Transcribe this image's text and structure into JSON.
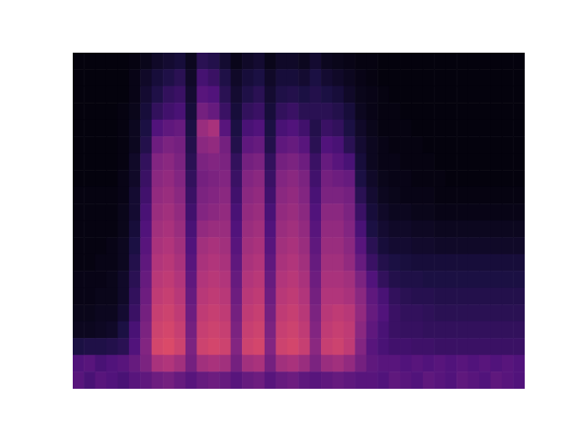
{
  "chart_data": {
    "type": "heatmap",
    "xlim": [
      0,
      40
    ],
    "ylim": [
      0,
      20
    ],
    "tick_labels": false,
    "clim": [
      0,
      110
    ],
    "cells": [
      [
        2,
        2,
        2,
        2,
        2,
        3,
        5,
        8,
        10,
        12,
        6,
        18,
        16,
        10,
        5,
        8,
        10,
        5,
        8,
        8,
        6,
        10,
        6,
        5,
        4,
        3,
        3,
        2,
        2,
        2,
        2,
        2,
        2,
        2,
        2,
        2,
        2,
        2,
        2,
        2
      ],
      [
        2,
        2,
        2,
        2,
        2,
        4,
        8,
        12,
        15,
        18,
        8,
        25,
        22,
        15,
        8,
        12,
        14,
        8,
        12,
        12,
        10,
        14,
        10,
        8,
        6,
        4,
        3,
        2,
        2,
        2,
        2,
        2,
        2,
        2,
        2,
        2,
        2,
        2,
        2,
        2
      ],
      [
        2,
        2,
        2,
        2,
        2,
        4,
        10,
        15,
        20,
        22,
        10,
        30,
        28,
        18,
        10,
        15,
        18,
        10,
        15,
        16,
        14,
        16,
        14,
        12,
        8,
        5,
        4,
        3,
        2,
        2,
        2,
        2,
        2,
        2,
        2,
        2,
        2,
        2,
        2,
        2
      ],
      [
        2,
        2,
        2,
        2,
        3,
        5,
        12,
        20,
        24,
        26,
        12,
        38,
        34,
        22,
        12,
        20,
        22,
        12,
        20,
        22,
        18,
        18,
        18,
        16,
        12,
        6,
        4,
        3,
        3,
        2,
        2,
        2,
        2,
        2,
        2,
        2,
        2,
        2,
        2,
        2
      ],
      [
        2,
        2,
        2,
        2,
        3,
        6,
        14,
        28,
        32,
        34,
        14,
        48,
        52,
        30,
        14,
        26,
        28,
        14,
        26,
        28,
        24,
        16,
        22,
        20,
        14,
        8,
        5,
        3,
        3,
        3,
        2,
        2,
        2,
        2,
        2,
        2,
        2,
        2,
        2,
        2
      ],
      [
        2,
        2,
        2,
        2,
        3,
        6,
        16,
        36,
        40,
        38,
        16,
        44,
        46,
        38,
        16,
        32,
        34,
        16,
        32,
        34,
        30,
        18,
        28,
        26,
        18,
        10,
        6,
        4,
        3,
        3,
        3,
        2,
        2,
        2,
        2,
        2,
        2,
        2,
        2,
        2
      ],
      [
        2,
        2,
        2,
        2,
        3,
        8,
        20,
        42,
        44,
        40,
        18,
        40,
        42,
        40,
        20,
        38,
        40,
        20,
        38,
        40,
        36,
        22,
        34,
        30,
        26,
        12,
        6,
        4,
        4,
        3,
        3,
        3,
        2,
        2,
        2,
        2,
        2,
        2,
        2,
        2
      ],
      [
        2,
        2,
        2,
        2,
        4,
        8,
        22,
        44,
        46,
        42,
        20,
        38,
        40,
        42,
        22,
        42,
        44,
        22,
        42,
        44,
        40,
        24,
        38,
        36,
        34,
        14,
        8,
        5,
        4,
        4,
        3,
        3,
        3,
        2,
        2,
        2,
        2,
        2,
        2,
        2
      ],
      [
        3,
        3,
        3,
        3,
        4,
        10,
        24,
        46,
        48,
        44,
        22,
        40,
        42,
        44,
        24,
        44,
        46,
        24,
        44,
        46,
        42,
        26,
        40,
        40,
        38,
        18,
        10,
        6,
        5,
        4,
        4,
        4,
        3,
        3,
        3,
        3,
        3,
        3,
        3,
        3
      ],
      [
        3,
        3,
        3,
        3,
        5,
        10,
        26,
        48,
        50,
        46,
        24,
        42,
        44,
        46,
        26,
        46,
        48,
        26,
        46,
        48,
        44,
        28,
        44,
        44,
        40,
        22,
        12,
        8,
        6,
        6,
        5,
        5,
        4,
        4,
        4,
        4,
        4,
        4,
        4,
        4
      ],
      [
        3,
        3,
        3,
        3,
        5,
        12,
        28,
        50,
        52,
        48,
        26,
        46,
        48,
        48,
        28,
        48,
        50,
        28,
        48,
        50,
        46,
        30,
        46,
        46,
        42,
        26,
        14,
        10,
        8,
        8,
        7,
        7,
        6,
        6,
        6,
        6,
        6,
        6,
        6,
        6
      ],
      [
        3,
        3,
        3,
        4,
        6,
        14,
        30,
        52,
        54,
        50,
        28,
        50,
        52,
        50,
        30,
        50,
        52,
        30,
        50,
        52,
        48,
        32,
        48,
        48,
        44,
        30,
        18,
        12,
        10,
        10,
        9,
        9,
        8,
        8,
        8,
        8,
        8,
        8,
        8,
        8
      ],
      [
        3,
        3,
        4,
        4,
        6,
        16,
        32,
        54,
        56,
        52,
        30,
        52,
        54,
        52,
        32,
        52,
        54,
        32,
        52,
        54,
        50,
        34,
        50,
        50,
        46,
        34,
        22,
        16,
        14,
        13,
        12,
        12,
        12,
        12,
        12,
        12,
        12,
        12,
        12,
        12
      ],
      [
        4,
        4,
        4,
        5,
        8,
        18,
        34,
        56,
        58,
        54,
        32,
        54,
        56,
        54,
        34,
        54,
        56,
        34,
        54,
        56,
        52,
        36,
        52,
        52,
        50,
        40,
        28,
        20,
        16,
        15,
        15,
        14,
        14,
        14,
        14,
        14,
        14,
        14,
        14,
        14
      ],
      [
        4,
        4,
        5,
        5,
        8,
        20,
        36,
        58,
        60,
        56,
        34,
        56,
        58,
        56,
        36,
        56,
        58,
        36,
        56,
        58,
        54,
        38,
        54,
        54,
        52,
        44,
        32,
        26,
        20,
        18,
        17,
        17,
        16,
        16,
        16,
        16,
        16,
        16,
        16,
        16
      ],
      [
        5,
        5,
        6,
        6,
        10,
        22,
        38,
        60,
        62,
        58,
        36,
        58,
        60,
        58,
        38,
        58,
        60,
        38,
        58,
        60,
        56,
        40,
        56,
        58,
        56,
        46,
        34,
        28,
        22,
        20,
        20,
        19,
        18,
        18,
        18,
        18,
        18,
        18,
        18,
        18
      ],
      [
        6,
        6,
        7,
        8,
        14,
        26,
        40,
        62,
        64,
        60,
        38,
        60,
        62,
        60,
        40,
        60,
        62,
        40,
        60,
        62,
        58,
        42,
        58,
        60,
        58,
        44,
        32,
        26,
        22,
        21,
        21,
        20,
        20,
        20,
        20,
        20,
        20,
        20,
        20,
        20
      ],
      [
        14,
        15,
        15,
        16,
        18,
        28,
        42,
        64,
        66,
        62,
        40,
        62,
        64,
        62,
        42,
        62,
        64,
        42,
        62,
        64,
        60,
        44,
        60,
        62,
        58,
        42,
        30,
        26,
        24,
        24,
        23,
        23,
        22,
        22,
        22,
        22,
        22,
        22,
        22,
        22
      ],
      [
        28,
        30,
        26,
        28,
        30,
        34,
        40,
        52,
        54,
        50,
        38,
        50,
        52,
        50,
        38,
        50,
        52,
        38,
        50,
        52,
        48,
        40,
        48,
        50,
        46,
        38,
        32,
        30,
        30,
        28,
        30,
        28,
        30,
        28,
        30,
        28,
        30,
        28,
        30,
        28
      ],
      [
        30,
        26,
        30,
        28,
        26,
        30,
        32,
        36,
        38,
        34,
        30,
        34,
        36,
        34,
        30,
        34,
        36,
        30,
        34,
        36,
        32,
        30,
        32,
        34,
        32,
        30,
        30,
        28,
        32,
        30,
        28,
        32,
        30,
        28,
        32,
        30,
        28,
        32,
        30,
        28
      ]
    ]
  }
}
